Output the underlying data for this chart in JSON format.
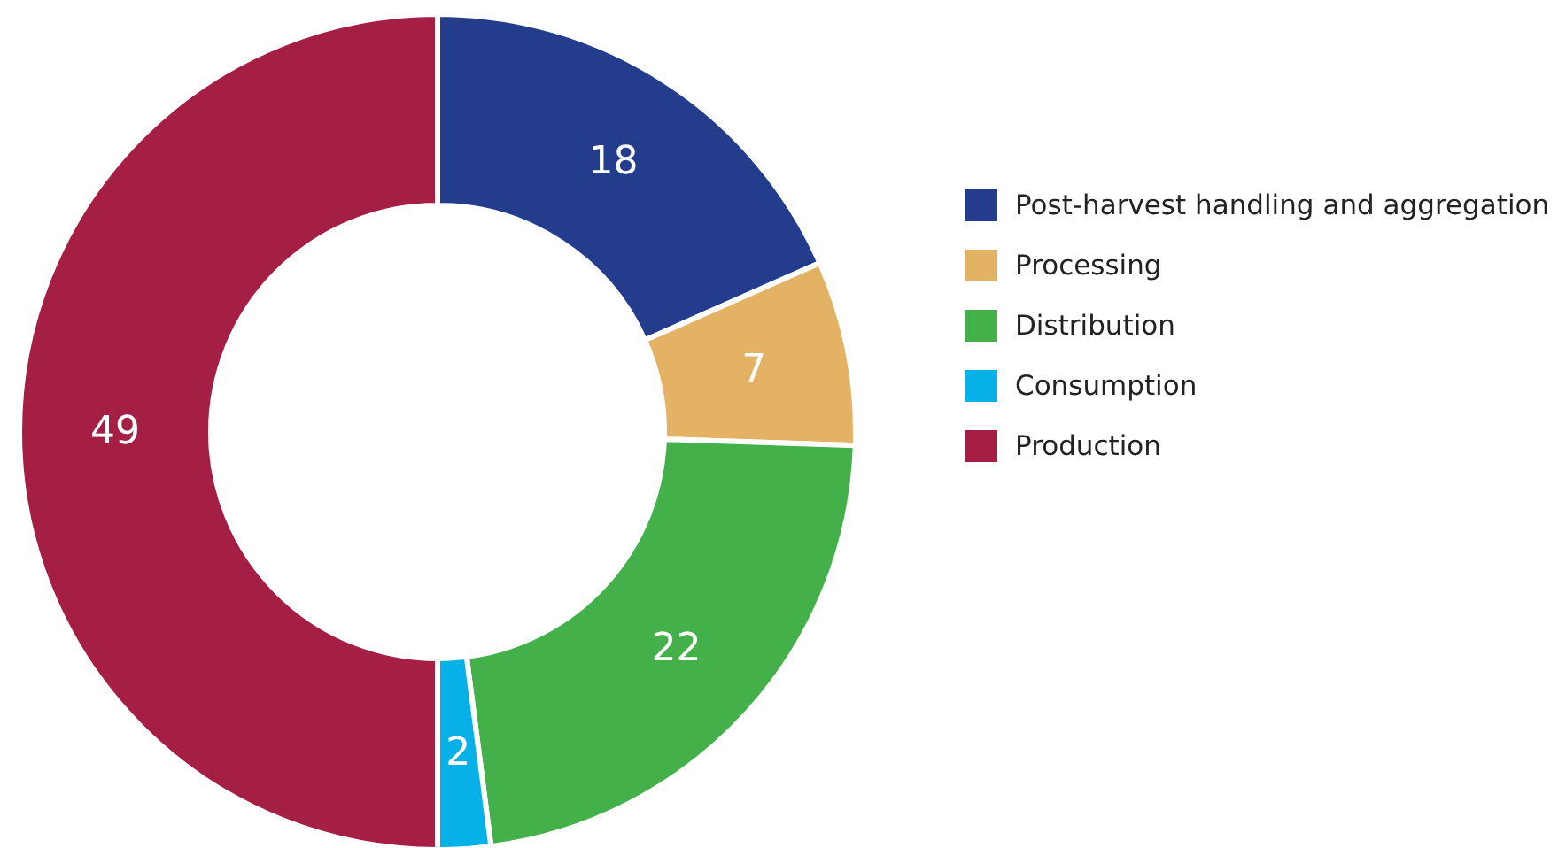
{
  "chart_data": {
    "type": "donut",
    "categories": [
      "Post-harvest handling and aggregation",
      "Processing",
      "Distribution",
      "Consumption",
      "Production"
    ],
    "values": [
      18,
      7,
      22,
      2,
      49
    ],
    "colors": [
      "#233d8c",
      "#e4b264",
      "#43b04a",
      "#07b1e8",
      "#a51f45"
    ],
    "data_labels": true,
    "legend": "right"
  }
}
